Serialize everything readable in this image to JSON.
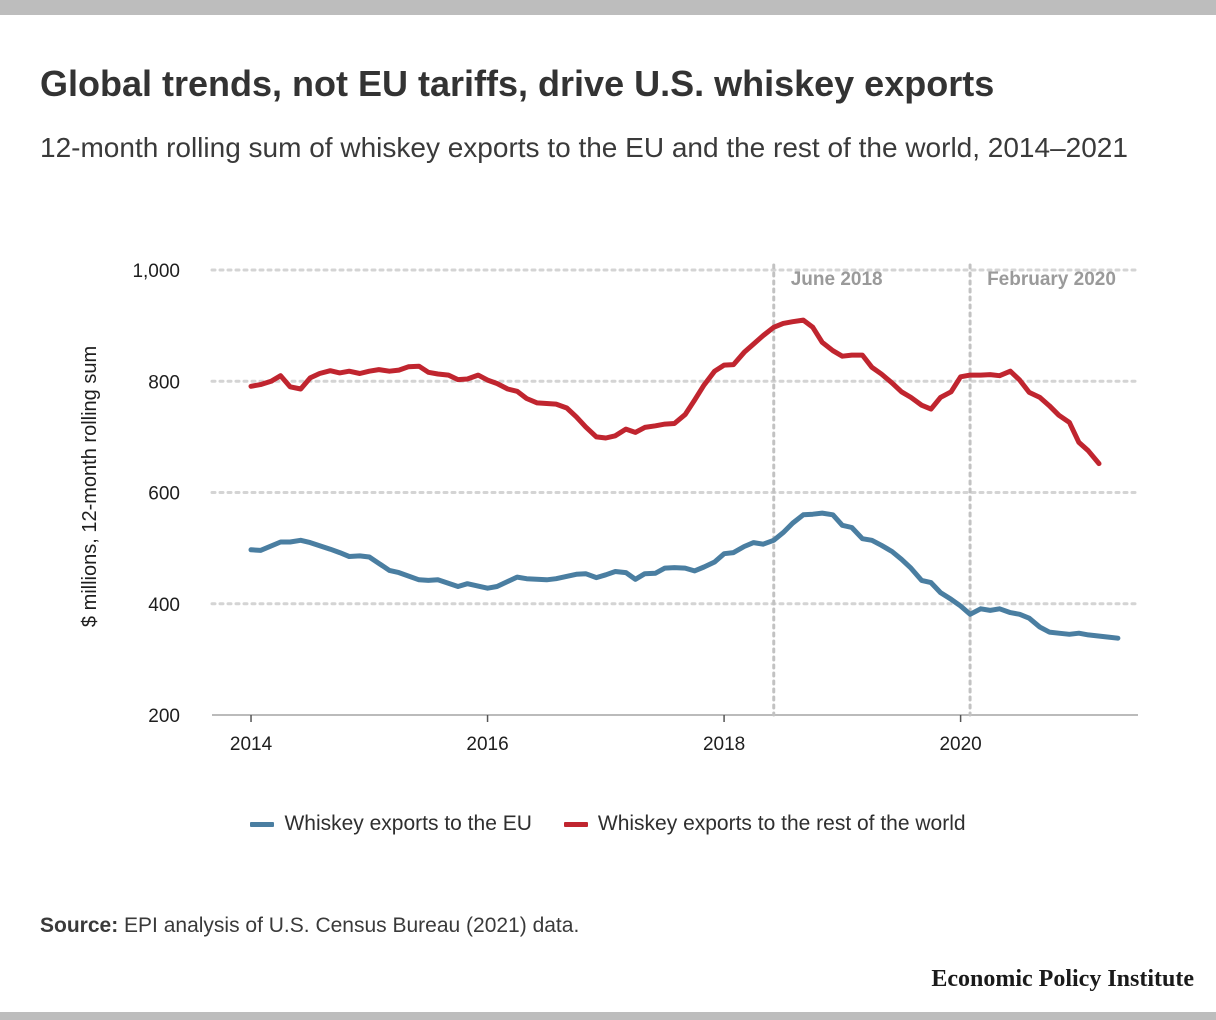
{
  "title": "Global trends, not EU tariffs, drive U.S. whiskey exports",
  "subtitle": "12-month rolling sum of whiskey exports to the EU and the rest of the world, 2014–2021",
  "source_label": "Source:",
  "source_text": "EPI analysis of U.S. Census Bureau (2021) data.",
  "brand": "Economic Policy Institute",
  "colors": {
    "eu": "#4a7ea1",
    "row": "#c0252f",
    "grid": "#d4d4d4",
    "annotation_line": "#c2c2c2",
    "annotation_text": "#9a9a9a",
    "rule": "#bdbdbd"
  },
  "chart_data": {
    "type": "line",
    "title": "Global trends, not EU tariffs, drive U.S. whiskey exports",
    "subtitle": "12-month rolling sum of whiskey exports to the EU and the rest of the world, 2014–2021",
    "xlabel": "",
    "ylabel": "$ millions, 12-month rolling sum",
    "xlim": [
      2013.67,
      2021.5
    ],
    "ylim": [
      200,
      1000
    ],
    "yticks": [
      200,
      400,
      600,
      800,
      1000
    ],
    "ytick_labels": [
      "200",
      "400",
      "600",
      "800",
      "1,000"
    ],
    "xticks": [
      2014,
      2016,
      2018,
      2020
    ],
    "xtick_labels": [
      "2014",
      "2016",
      "2018",
      "2020"
    ],
    "grid": "horizontal dotted",
    "legend_position": "bottom-center",
    "annotations": [
      {
        "x": 2018.42,
        "label": "June 2018"
      },
      {
        "x": 2020.08,
        "label": "February 2020"
      }
    ],
    "series": [
      {
        "name": "Whiskey exports to the EU",
        "color": "#4a7ea1",
        "points": [
          [
            2014.0,
            497
          ],
          [
            2014.08,
            496
          ],
          [
            2014.25,
            511
          ],
          [
            2014.33,
            511
          ],
          [
            2014.42,
            514
          ],
          [
            2014.5,
            510
          ],
          [
            2014.67,
            498
          ],
          [
            2014.75,
            492
          ],
          [
            2014.83,
            485
          ],
          [
            2014.92,
            486
          ],
          [
            2015.0,
            484
          ],
          [
            2015.17,
            460
          ],
          [
            2015.25,
            456
          ],
          [
            2015.42,
            443
          ],
          [
            2015.5,
            442
          ],
          [
            2015.58,
            443
          ],
          [
            2015.75,
            431
          ],
          [
            2015.83,
            436
          ],
          [
            2016.0,
            428
          ],
          [
            2016.08,
            431
          ],
          [
            2016.25,
            448
          ],
          [
            2016.33,
            445
          ],
          [
            2016.5,
            443
          ],
          [
            2016.58,
            445
          ],
          [
            2016.75,
            453
          ],
          [
            2016.83,
            454
          ],
          [
            2016.92,
            447
          ],
          [
            2017.0,
            452
          ],
          [
            2017.08,
            458
          ],
          [
            2017.17,
            456
          ],
          [
            2017.25,
            444
          ],
          [
            2017.33,
            454
          ],
          [
            2017.42,
            455
          ],
          [
            2017.5,
            464
          ],
          [
            2017.58,
            465
          ],
          [
            2017.67,
            464
          ],
          [
            2017.75,
            459
          ],
          [
            2017.83,
            466
          ],
          [
            2017.92,
            475
          ],
          [
            2018.0,
            490
          ],
          [
            2018.08,
            492
          ],
          [
            2018.17,
            503
          ],
          [
            2018.25,
            510
          ],
          [
            2018.33,
            507
          ],
          [
            2018.42,
            514
          ],
          [
            2018.5,
            528
          ],
          [
            2018.58,
            545
          ],
          [
            2018.67,
            560
          ],
          [
            2018.75,
            561
          ],
          [
            2018.83,
            563
          ],
          [
            2018.92,
            560
          ],
          [
            2019.0,
            541
          ],
          [
            2019.08,
            537
          ],
          [
            2019.17,
            517
          ],
          [
            2019.25,
            514
          ],
          [
            2019.33,
            505
          ],
          [
            2019.42,
            494
          ],
          [
            2019.5,
            480
          ],
          [
            2019.58,
            464
          ],
          [
            2019.67,
            442
          ],
          [
            2019.75,
            438
          ],
          [
            2019.83,
            420
          ],
          [
            2019.92,
            408
          ],
          [
            2020.0,
            396
          ],
          [
            2020.08,
            381
          ],
          [
            2020.17,
            391
          ],
          [
            2020.25,
            388
          ],
          [
            2020.33,
            391
          ],
          [
            2020.42,
            384
          ],
          [
            2020.5,
            381
          ],
          [
            2020.58,
            374
          ],
          [
            2020.67,
            358
          ],
          [
            2020.75,
            349
          ],
          [
            2020.83,
            347
          ],
          [
            2020.92,
            345
          ],
          [
            2021.0,
            347
          ],
          [
            2021.08,
            344
          ],
          [
            2021.25,
            340
          ],
          [
            2021.33,
            338
          ]
        ]
      },
      {
        "name": "Whiskey exports to the rest of the world",
        "color": "#c0252f",
        "points": [
          [
            2014.0,
            791
          ],
          [
            2014.08,
            794
          ],
          [
            2014.17,
            800
          ],
          [
            2014.25,
            810
          ],
          [
            2014.33,
            790
          ],
          [
            2014.42,
            786
          ],
          [
            2014.5,
            806
          ],
          [
            2014.58,
            814
          ],
          [
            2014.67,
            819
          ],
          [
            2014.75,
            815
          ],
          [
            2014.83,
            818
          ],
          [
            2014.92,
            814
          ],
          [
            2015.0,
            818
          ],
          [
            2015.08,
            821
          ],
          [
            2015.17,
            818
          ],
          [
            2015.25,
            820
          ],
          [
            2015.33,
            826
          ],
          [
            2015.42,
            827
          ],
          [
            2015.5,
            816
          ],
          [
            2015.58,
            813
          ],
          [
            2015.67,
            811
          ],
          [
            2015.75,
            803
          ],
          [
            2015.83,
            804
          ],
          [
            2015.92,
            811
          ],
          [
            2016.0,
            802
          ],
          [
            2016.08,
            796
          ],
          [
            2016.17,
            786
          ],
          [
            2016.25,
            782
          ],
          [
            2016.33,
            769
          ],
          [
            2016.42,
            761
          ],
          [
            2016.5,
            760
          ],
          [
            2016.58,
            759
          ],
          [
            2016.67,
            752
          ],
          [
            2016.75,
            736
          ],
          [
            2016.83,
            718
          ],
          [
            2016.92,
            700
          ],
          [
            2017.0,
            698
          ],
          [
            2017.08,
            702
          ],
          [
            2017.17,
            714
          ],
          [
            2017.25,
            708
          ],
          [
            2017.33,
            717
          ],
          [
            2017.42,
            720
          ],
          [
            2017.5,
            723
          ],
          [
            2017.58,
            724
          ],
          [
            2017.67,
            740
          ],
          [
            2017.75,
            766
          ],
          [
            2017.83,
            793
          ],
          [
            2017.92,
            818
          ],
          [
            2018.0,
            829
          ],
          [
            2018.08,
            830
          ],
          [
            2018.17,
            852
          ],
          [
            2018.25,
            867
          ],
          [
            2018.33,
            882
          ],
          [
            2018.42,
            897
          ],
          [
            2018.5,
            904
          ],
          [
            2018.58,
            907
          ],
          [
            2018.67,
            910
          ],
          [
            2018.75,
            897
          ],
          [
            2018.83,
            870
          ],
          [
            2018.92,
            855
          ],
          [
            2019.0,
            845
          ],
          [
            2019.08,
            847
          ],
          [
            2019.17,
            847
          ],
          [
            2019.25,
            825
          ],
          [
            2019.33,
            813
          ],
          [
            2019.42,
            797
          ],
          [
            2019.5,
            781
          ],
          [
            2019.58,
            771
          ],
          [
            2019.67,
            757
          ],
          [
            2019.75,
            750
          ],
          [
            2019.83,
            771
          ],
          [
            2019.92,
            781
          ],
          [
            2020.0,
            808
          ],
          [
            2020.08,
            811
          ],
          [
            2020.17,
            811
          ],
          [
            2020.25,
            812
          ],
          [
            2020.33,
            810
          ],
          [
            2020.42,
            818
          ],
          [
            2020.5,
            802
          ],
          [
            2020.58,
            780
          ],
          [
            2020.67,
            771
          ],
          [
            2020.75,
            756
          ],
          [
            2020.83,
            739
          ],
          [
            2020.92,
            726
          ],
          [
            2021.0,
            690
          ],
          [
            2021.08,
            675
          ],
          [
            2021.17,
            652
          ]
        ]
      }
    ]
  }
}
